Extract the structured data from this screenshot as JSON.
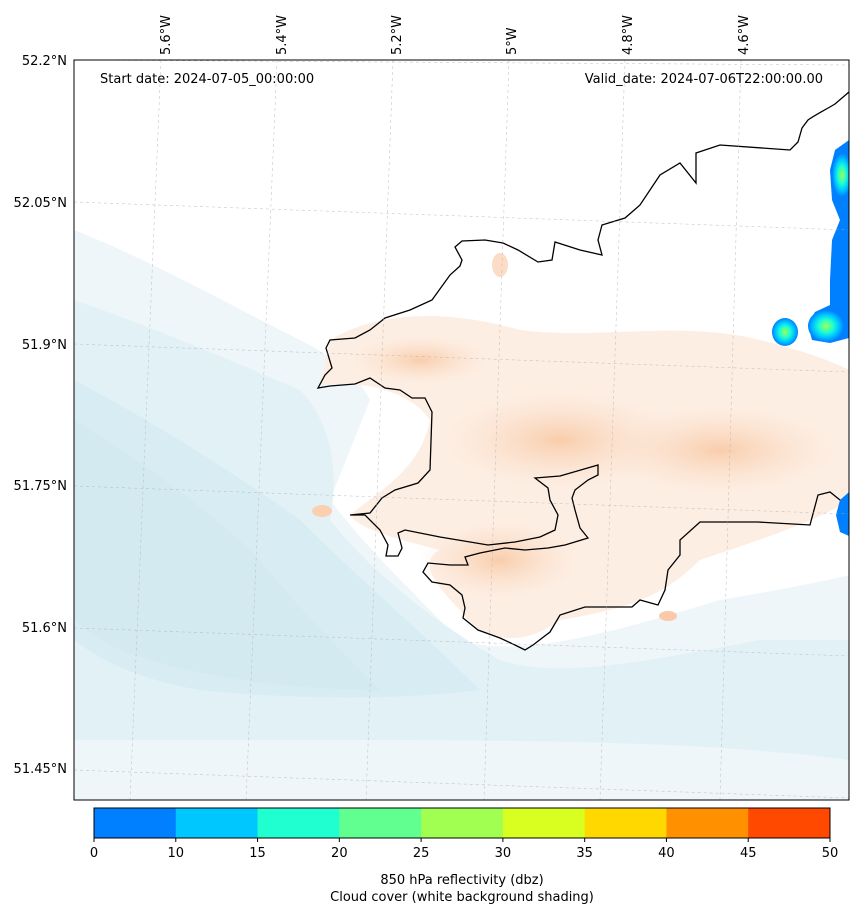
{
  "map": {
    "start_label": "Start date: 2024-07-05_00:00:00",
    "valid_label": "Valid_date: 2024-07-06T22:00:00.00",
    "lon_ticks": [
      "5.6°W",
      "5.4°W",
      "5.2°W",
      "5°W",
      "4.8°W",
      "4.6°W"
    ],
    "lat_ticks": [
      "52.2°N",
      "52.05°N",
      "51.9°N",
      "51.75°N",
      "51.6°N",
      "51.45°N"
    ],
    "lat_range": [
      51.42,
      52.2
    ],
    "lon_range": [
      -5.74,
      -4.39
    ],
    "land_color": "#000000",
    "cloud_shade_color": "#d5ebf2",
    "land_tint_color": "#fbd7bc"
  },
  "colorbar": {
    "ticks": [
      "0",
      "10",
      "15",
      "20",
      "25",
      "30",
      "35",
      "40",
      "45",
      "50"
    ],
    "colors": [
      "#0080ff",
      "#00c8ff",
      "#20ffd0",
      "#60ff90",
      "#a0ff50",
      "#d8ff20",
      "#ffd800",
      "#ff9000",
      "#ff4800"
    ],
    "label_line1": "850 hPa reflectivity (dbz)",
    "label_line2": "Cloud cover (white background shading)"
  }
}
